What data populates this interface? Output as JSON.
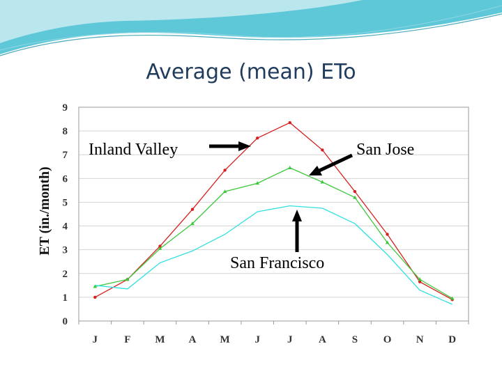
{
  "slide": {
    "title": "Average (mean) ETo"
  },
  "colors": {
    "banner_primary": "#5fc8d8",
    "banner_light": "#d8f1f5",
    "title": "#1f3c5c"
  },
  "chart_data": {
    "type": "line",
    "title": "Average (mean) ETo",
    "xlabel": "",
    "ylabel": "ET (in./month)",
    "categories": [
      "J",
      "F",
      "M",
      "A",
      "M",
      "J",
      "J",
      "A",
      "S",
      "O",
      "N",
      "D"
    ],
    "ylim": [
      0,
      9
    ],
    "yticks": [
      0,
      1,
      2,
      3,
      4,
      5,
      6,
      7,
      8,
      9
    ],
    "grid": true,
    "series": [
      {
        "name": "Inland Valley",
        "color": "#d62020",
        "marker": "circle",
        "values": [
          1.0,
          1.75,
          3.15,
          4.7,
          6.35,
          7.7,
          8.35,
          7.2,
          5.45,
          3.65,
          1.65,
          0.9
        ]
      },
      {
        "name": "San Jose",
        "color": "#3cc83c",
        "marker": "triangle",
        "values": [
          1.45,
          1.75,
          3.05,
          4.1,
          5.45,
          5.8,
          6.45,
          5.85,
          5.2,
          3.3,
          1.75,
          0.95
        ]
      },
      {
        "name": "San Francisco",
        "color": "#30e0e0",
        "marker": "none",
        "values": [
          1.5,
          1.35,
          2.45,
          2.95,
          3.65,
          4.6,
          4.85,
          4.75,
          4.1,
          2.8,
          1.3,
          0.7
        ]
      }
    ],
    "annotations": [
      {
        "text": "Inland Valley",
        "points_to": "Inland Valley"
      },
      {
        "text": "San Jose",
        "points_to": "San Jose"
      },
      {
        "text": "San Francisco",
        "points_to": "San Francisco"
      }
    ]
  }
}
